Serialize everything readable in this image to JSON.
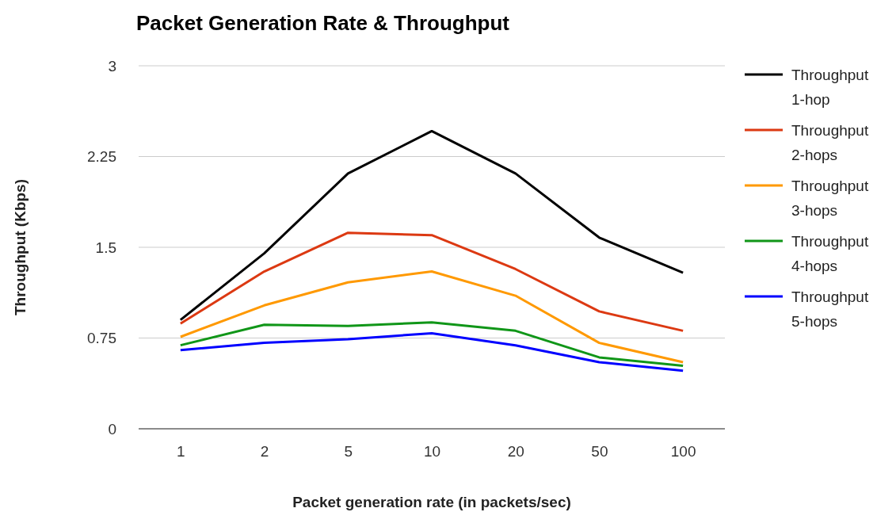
{
  "chart_data": {
    "type": "line",
    "title": "Packet Generation Rate & Throughput",
    "xlabel": "Packet generation rate (in packets/sec)",
    "ylabel": "Throughput (Kbps)",
    "categories": [
      "1",
      "2",
      "5",
      "10",
      "20",
      "50",
      "100"
    ],
    "ylim": [
      0,
      3
    ],
    "yticks": [
      0,
      0.75,
      1.5,
      2.25,
      3
    ],
    "grid": "y",
    "legend": "right",
    "series": [
      {
        "name": "Throughput 1-hop",
        "color": "#000000",
        "values": [
          0.9,
          1.45,
          2.11,
          2.46,
          2.11,
          1.58,
          1.29
        ]
      },
      {
        "name": "Throughput 2-hops",
        "color": "#dc3912",
        "values": [
          0.87,
          1.3,
          1.62,
          1.6,
          1.32,
          0.97,
          0.81
        ]
      },
      {
        "name": "Throughput 3-hops",
        "color": "#ff9900",
        "values": [
          0.76,
          1.02,
          1.21,
          1.3,
          1.1,
          0.71,
          0.55
        ]
      },
      {
        "name": "Throughput 4-hops",
        "color": "#109618",
        "values": [
          0.69,
          0.86,
          0.85,
          0.88,
          0.81,
          0.59,
          0.52
        ]
      },
      {
        "name": "Throughput 5-hops",
        "color": "#0000ff",
        "values": [
          0.65,
          0.71,
          0.74,
          0.79,
          0.69,
          0.55,
          0.48
        ]
      }
    ]
  }
}
